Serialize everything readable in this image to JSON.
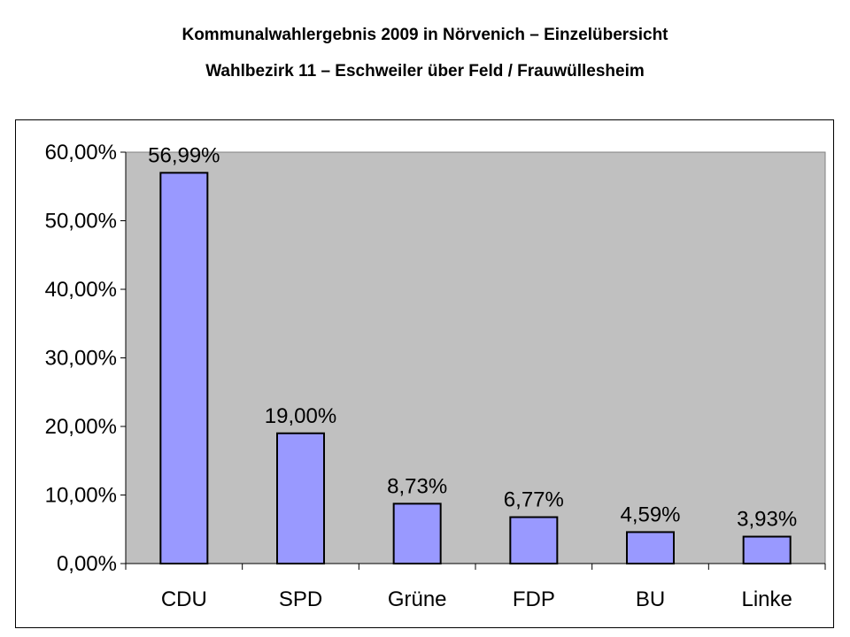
{
  "header": {
    "title": "Kommunalwahlergebnis 2009 in Nörvenich – Einzelübersicht",
    "subtitle": "Wahlbezirk 11 – Eschweiler über Feld / Frauwüllesheim"
  },
  "chart_data": {
    "type": "bar",
    "title": "Kommunalwahlergebnis 2009 in Nörvenich – Einzelübersicht",
    "subtitle": "Wahlbezirk 11 – Eschweiler über Feld / Frauwüllesheim",
    "categories": [
      "CDU",
      "SPD",
      "Grüne",
      "FDP",
      "BU",
      "Linke"
    ],
    "values": [
      56.99,
      19.0,
      8.73,
      6.77,
      4.59,
      3.93
    ],
    "data_labels": [
      "56,99%",
      "19,00%",
      "8,73%",
      "6,77%",
      "4,59%",
      "3,93%"
    ],
    "yticks": [
      0,
      10,
      20,
      30,
      40,
      50,
      60
    ],
    "ytick_labels": [
      "0,00%",
      "10,00%",
      "20,00%",
      "30,00%",
      "40,00%",
      "50,00%",
      "60,00%"
    ],
    "ylim": [
      0,
      60
    ],
    "xlabel": "",
    "ylabel": "",
    "grid": false,
    "legend": false,
    "colors": {
      "bar_fill": "#9999ff",
      "bar_stroke": "#000000",
      "plot_background": "#c0c0c0"
    }
  }
}
